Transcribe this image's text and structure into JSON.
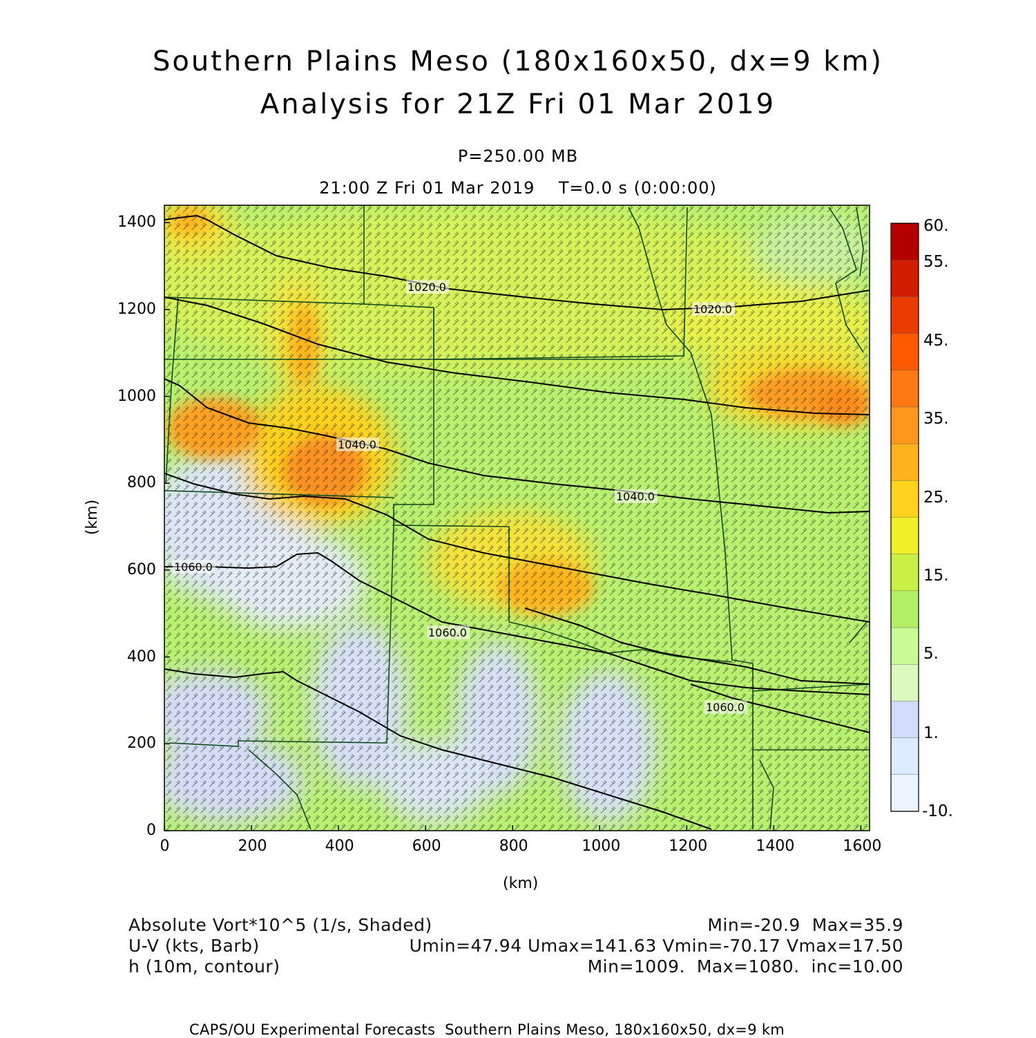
{
  "header": {
    "title_line1": "Southern Plains Meso (180x160x50, dx=9 km)",
    "title_line2": "Analysis for 21Z Fri 01 Mar 2019",
    "level": "P=250.00 MB",
    "valid_time": "21:00 Z Fri 01 Mar 2019    T=0.0 s (0:00:00)"
  },
  "axes": {
    "x_label": "(km)",
    "y_label": "(km)",
    "x_ticks": [
      "0",
      "200",
      "400",
      "600",
      "800",
      "1000",
      "1200",
      "1400",
      "1600"
    ],
    "y_ticks": [
      "0",
      "200",
      "400",
      "600",
      "800",
      "1000",
      "1200",
      "1400"
    ],
    "x_range_km": [
      0,
      1620
    ],
    "y_range_km": [
      0,
      1440
    ]
  },
  "colorbar": {
    "labels": [
      "60.",
      "55.",
      "45.",
      "35.",
      "25.",
      "15.",
      "5.",
      "1.",
      "-10."
    ],
    "colors": [
      "#b40000",
      "#d21e00",
      "#eb3c00",
      "#ff5a00",
      "#ff7814",
      "#ff961e",
      "#ffb41e",
      "#ffd21e",
      "#f0f028",
      "#c8f046",
      "#b4f064",
      "#c8fa96",
      "#dcfabe",
      "#d2dcfa",
      "#dcebff",
      "#ebf5ff"
    ]
  },
  "contour_labels": [
    "1020.0",
    "1020.0",
    "1040.0",
    "1040.0",
    "1060.0",
    "1060.0",
    "1060.0"
  ],
  "info": {
    "field1_name": "Absolute Vort*10^5 (1/s, Shaded)",
    "field1_stats": "Min=-20.9  Max=35.9",
    "field2_name": "U-V (kts, Barb)",
    "field2_stats": "Umin=47.94 Umax=141.63 Vmin=-70.17 Vmax=17.50",
    "field3_name": "h (10m, contour)",
    "field3_stats": "Min=1009.  Max=1080.  inc=10.00"
  },
  "footer": "CAPS/OU Experimental Forecasts  Southern Plains Meso, 180x160x50, dx=9 km"
}
